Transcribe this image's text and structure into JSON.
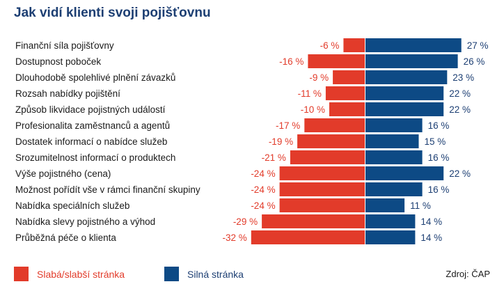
{
  "chart_data": {
    "type": "bar",
    "title": "Jak vidí klienti svoji pojišťovnu",
    "categories": [
      "Finanční síla pojišťovny",
      "Dostupnost poboček",
      "Dlouhodobě spolehlivé plnění závazků",
      "Rozsah nabídky pojištění",
      "Způsob likvidace pojistných událostí",
      "Profesionalita zaměstnanců a agentů",
      "Dostatek informací o nabídce služeb",
      "Srozumitelnost informací o produktech",
      "Výše pojistného (cena)",
      "Možnost pořídít vše v rámci finanční skupiny",
      "Nabídka speciálních služeb",
      "Nabídka slevy pojistného a výhod",
      "Průběžná péče o klienta"
    ],
    "series": [
      {
        "name": "Slabá/slabší stránka",
        "color": "#e23b2a",
        "values": [
          -6,
          -16,
          -9,
          -11,
          -10,
          -17,
          -19,
          -21,
          -24,
          -24,
          -24,
          -29,
          -32
        ],
        "labels": [
          "-6 %",
          "-16 %",
          "-9 %",
          "-11 %",
          "-10 %",
          "-17 %",
          "-19 %",
          "-21 %",
          "-24 %",
          "-24 %",
          "-24 %",
          "-29 %",
          "-32 %"
        ]
      },
      {
        "name": "Silná stránka",
        "color": "#0d4a85",
        "values": [
          27,
          26,
          23,
          22,
          22,
          16,
          15,
          16,
          22,
          16,
          11,
          14,
          14
        ],
        "labels": [
          "27 %",
          "26 %",
          "23 %",
          "22 %",
          "22 %",
          "16 %",
          "15 %",
          "16 %",
          "22 %",
          "16 %",
          "11 %",
          "14 %",
          "14 %"
        ]
      }
    ],
    "legend": {
      "placement": "bottom-left"
    }
  },
  "source": "Zdroj: ČAP"
}
